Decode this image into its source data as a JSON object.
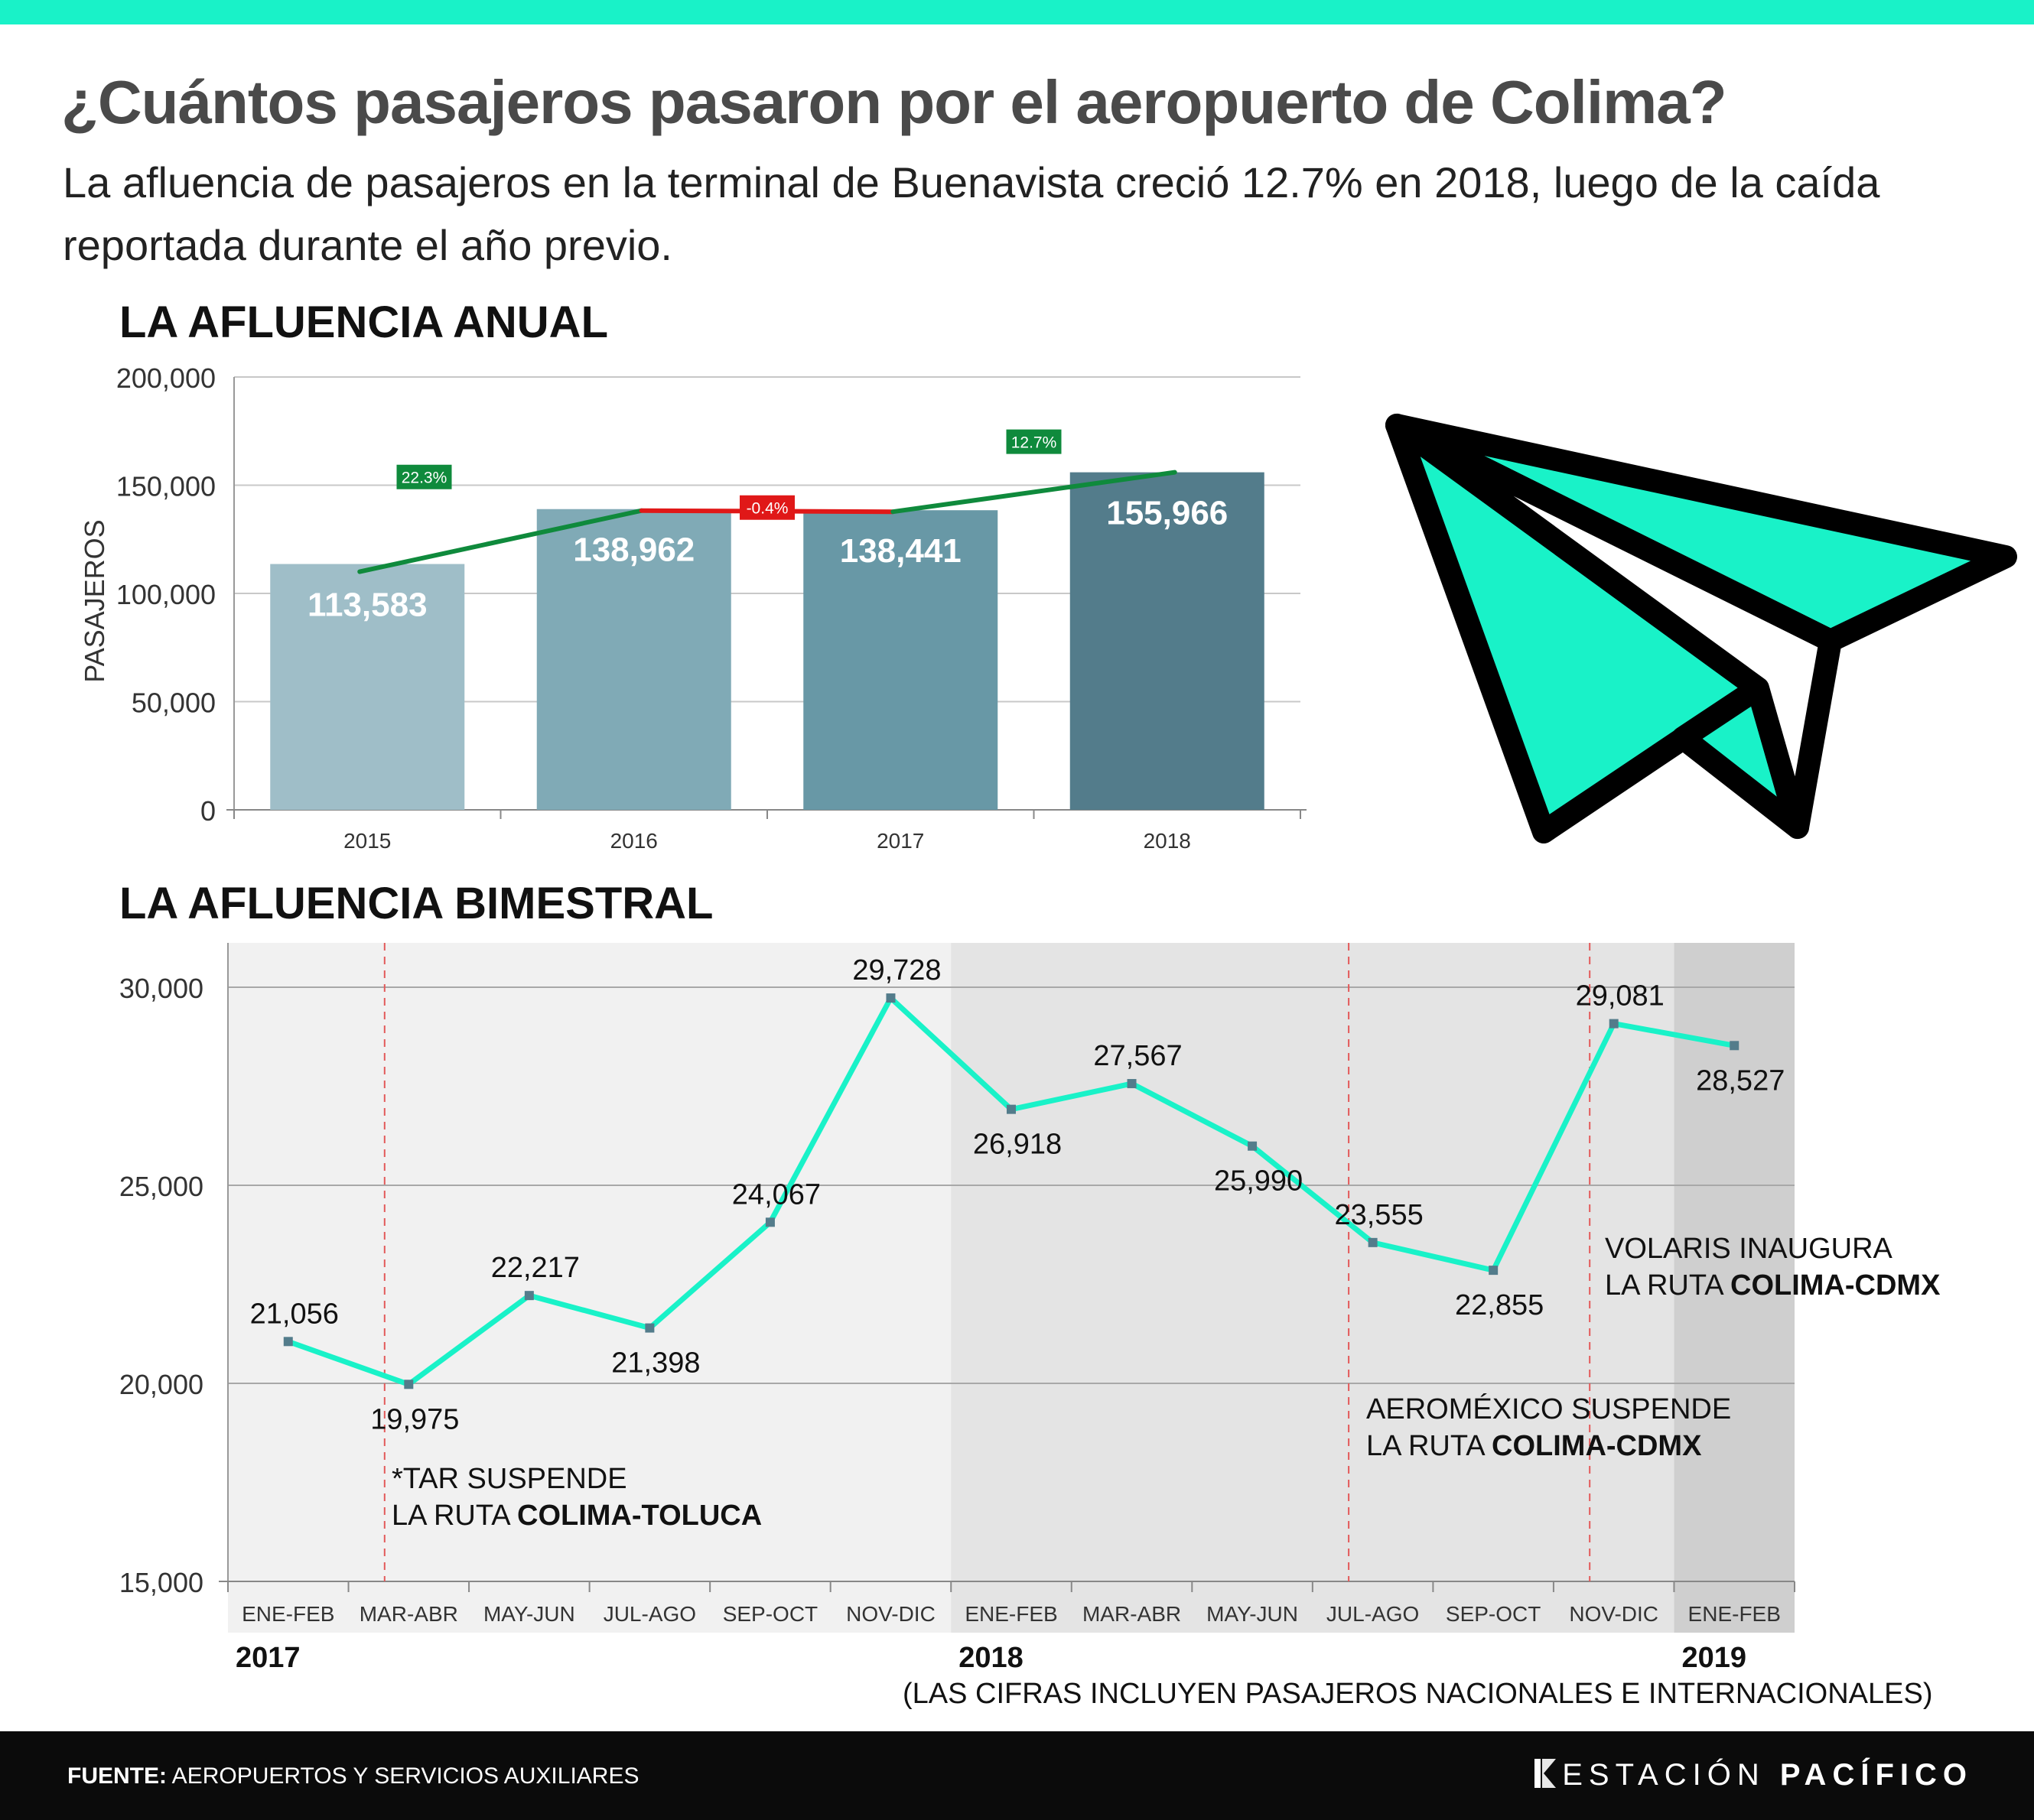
{
  "header": {
    "title": "¿Cuántos pasajeros pasaron por el aeropuerto de Colima?",
    "subtitle": "La afluencia de pasajeros en la terminal de Buenavista creció 12.7% en 2018, luego de la caída reportada durante el año previo."
  },
  "colors": {
    "accent": "#19f2c8",
    "growth_green": "#0f8a3c",
    "decline_red": "#e01818",
    "bar_2015": "#9fbec8",
    "bar_2016": "#80aab6",
    "bar_2017": "#6898a6",
    "bar_2018": "#537c8b"
  },
  "chart_data": [
    {
      "type": "bar",
      "title": "LA AFLUENCIA ANUAL",
      "ylabel": "PASAJEROS",
      "categories": [
        "2015",
        "2016",
        "2017",
        "2018"
      ],
      "values": [
        113583,
        138962,
        138441,
        155966
      ],
      "value_labels": [
        "113,583",
        "138,962",
        "138,441",
        "155,966"
      ],
      "ylim": [
        0,
        200000
      ],
      "yticks": [
        0,
        50000,
        100000,
        150000,
        200000
      ],
      "ytick_labels": [
        "0",
        "50,000",
        "100,000",
        "150,000",
        "200,000"
      ],
      "grid": true,
      "changes": [
        {
          "from": "2015",
          "to": "2016",
          "label": "22.3%",
          "direction": "up"
        },
        {
          "from": "2016",
          "to": "2017",
          "label": "-0.4%",
          "direction": "down"
        },
        {
          "from": "2017",
          "to": "2018",
          "label": "12.7%",
          "direction": "up"
        }
      ]
    },
    {
      "type": "line",
      "title": "LA AFLUENCIA BIMESTRAL",
      "categories": [
        "ENE-FEB",
        "MAR-ABR",
        "MAY-JUN",
        "JUL-AGO",
        "SEP-OCT",
        "NOV-DIC",
        "ENE-FEB",
        "MAR-ABR",
        "MAY-JUN",
        "JUL-AGO",
        "SEP-OCT",
        "NOV-DIC",
        "ENE-FEB"
      ],
      "values": [
        21056,
        19975,
        22217,
        21398,
        24067,
        29728,
        26918,
        27567,
        25990,
        23555,
        22855,
        29081,
        28527
      ],
      "value_labels": [
        "21,056",
        "19,975",
        "22,217",
        "21,398",
        "24,067",
        "29,728",
        "26,918",
        "27,567",
        "25,990",
        "23,555",
        "22,855",
        "29,081",
        "28,527"
      ],
      "ylim": [
        15000,
        30000
      ],
      "yticks": [
        15000,
        20000,
        25000,
        30000
      ],
      "ytick_labels": [
        "15,000",
        "20,000",
        "25,000",
        "30,000"
      ],
      "grid": true,
      "years": [
        {
          "label": "2017",
          "start_index": 0
        },
        {
          "label": "2018",
          "start_index": 6
        },
        {
          "label": "2019",
          "start_index": 12
        }
      ],
      "annotations": [
        {
          "index": 1,
          "line1": "*TAR SUSPENDE",
          "line2_prefix": "LA RUTA ",
          "line2_bold": "COLIMA-TOLUCA"
        },
        {
          "index": 9,
          "line1": "AEROMÉXICO SUSPENDE",
          "line2_prefix": "LA RUTA ",
          "line2_bold": "COLIMA-CDMX"
        },
        {
          "index": 11,
          "line1": "VOLARIS INAUGURA",
          "line2_prefix": "LA RUTA ",
          "line2_bold": "COLIMA-CDMX"
        }
      ],
      "note": "(LAS CIFRAS INCLUYEN PASAJEROS NACIONALES E INTERNACIONALES)"
    }
  ],
  "footer": {
    "source_label": "FUENTE:",
    "source_text": " AEROPUERTOS Y SERVICIOS AUXILIARES",
    "brand_light": "ESTACIÓN ",
    "brand_bold": "PACÍFICO"
  },
  "icons": [
    "paper-plane-icon",
    "estacion-pacifico-logo"
  ]
}
